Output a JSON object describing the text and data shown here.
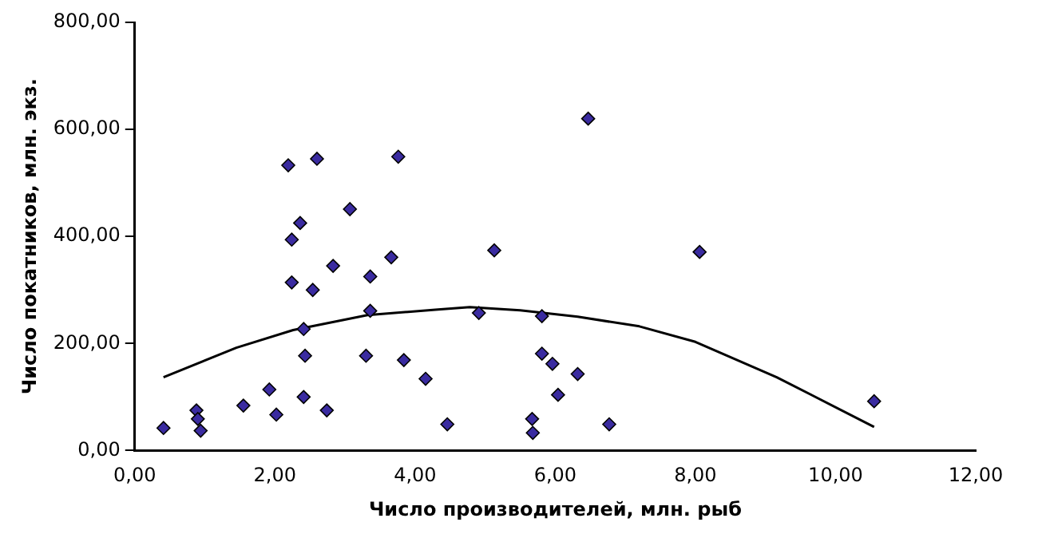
{
  "chart_data": {
    "type": "scatter",
    "xlabel": "Число производителей, млн. рыб",
    "ylabel": "Число покатников, млн. экз.",
    "marker": "diamond",
    "grid": false,
    "legend": false,
    "xlim": [
      0,
      12
    ],
    "xticks": [
      {
        "value": 0,
        "label": "0,00"
      },
      {
        "value": 2,
        "label": "2,00"
      },
      {
        "value": 4,
        "label": "4,00"
      },
      {
        "value": 6,
        "label": "6,00"
      },
      {
        "value": 8,
        "label": "8,00"
      },
      {
        "value": 10,
        "label": "10,00"
      },
      {
        "value": 12,
        "label": "12,00"
      }
    ],
    "ylim": [
      0,
      800
    ],
    "yticks": [
      {
        "value": 0,
        "label": "0,00"
      },
      {
        "value": 200,
        "label": "200,00"
      },
      {
        "value": 400,
        "label": "400,00"
      },
      {
        "value": 600,
        "label": "600,00"
      },
      {
        "value": 800,
        "label": "800,00"
      }
    ],
    "series": [
      {
        "color": "#3a2ba0",
        "x": [
          0.41,
          0.88,
          0.9,
          0.94,
          1.55,
          1.92,
          2.02,
          2.19,
          2.6,
          3.76,
          2.36,
          2.24,
          3.07,
          2.24,
          2.83,
          2.54,
          3.36,
          3.66,
          5.13,
          3.36,
          2.41,
          4.91,
          5.81,
          2.43,
          3.3,
          3.84,
          4.15,
          2.41,
          2.74,
          4.46,
          5.67,
          5.68,
          5.81,
          5.96,
          6.04,
          6.47,
          8.06,
          6.32,
          6.77,
          10.55
        ],
        "values": [
          42,
          75,
          59,
          37,
          84,
          114,
          67,
          533,
          545,
          549,
          425,
          394,
          451,
          314,
          345,
          300,
          325,
          361,
          374,
          261,
          227,
          257,
          251,
          177,
          177,
          169,
          134,
          100,
          75,
          49,
          59,
          33,
          181,
          162,
          104,
          620,
          371,
          143,
          49,
          92
        ]
      },
      {
        "type": "line",
        "color": "#000000",
        "marker": "none",
        "x": [
          0.41,
          1.45,
          2.26,
          3.32,
          4.29,
          4.78,
          5.5,
          6.32,
          7.2,
          8.0,
          9.16,
          10.55
        ],
        "values": [
          137,
          192,
          225,
          253,
          263,
          268,
          262,
          250,
          232,
          203,
          137,
          44
        ]
      }
    ]
  }
}
